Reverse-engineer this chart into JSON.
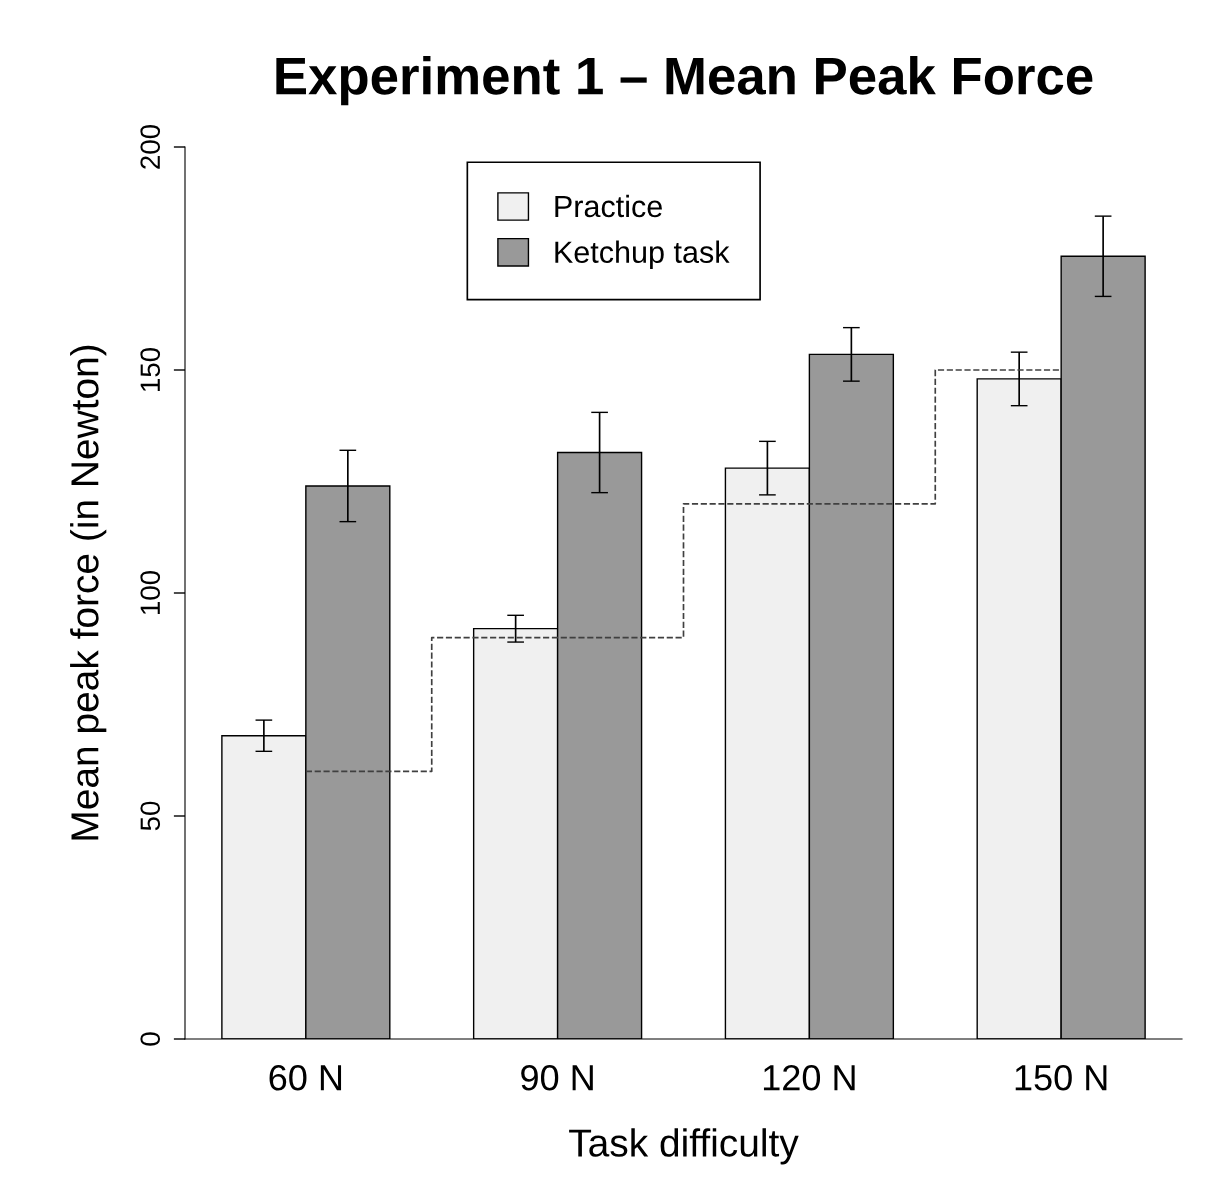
{
  "chart_data": {
    "type": "bar",
    "title": "Experiment 1 – Mean Peak Force",
    "xlabel": "Task difficulty",
    "ylabel": "Mean peak force (in Newton)",
    "categories": [
      "60 N",
      "90 N",
      "120 N",
      "150 N"
    ],
    "series": [
      {
        "name": "Practice",
        "color": "#f0f0f0",
        "values": [
          68,
          92,
          128,
          148
        ],
        "errors": [
          3.5,
          3,
          6,
          6
        ]
      },
      {
        "name": "Ketchup task",
        "color": "#999999",
        "values": [
          124,
          131.5,
          153.5,
          175.5
        ],
        "errors": [
          8,
          9,
          6,
          9
        ]
      },
      {
        "type": "step",
        "color": "#404040",
        "line_style": "dashed",
        "values": [
          60,
          90,
          120,
          150
        ]
      }
    ],
    "ylim": [
      0,
      200
    ],
    "yticks": [
      0,
      50,
      100,
      150,
      200
    ],
    "grid": false,
    "legend": "top"
  }
}
